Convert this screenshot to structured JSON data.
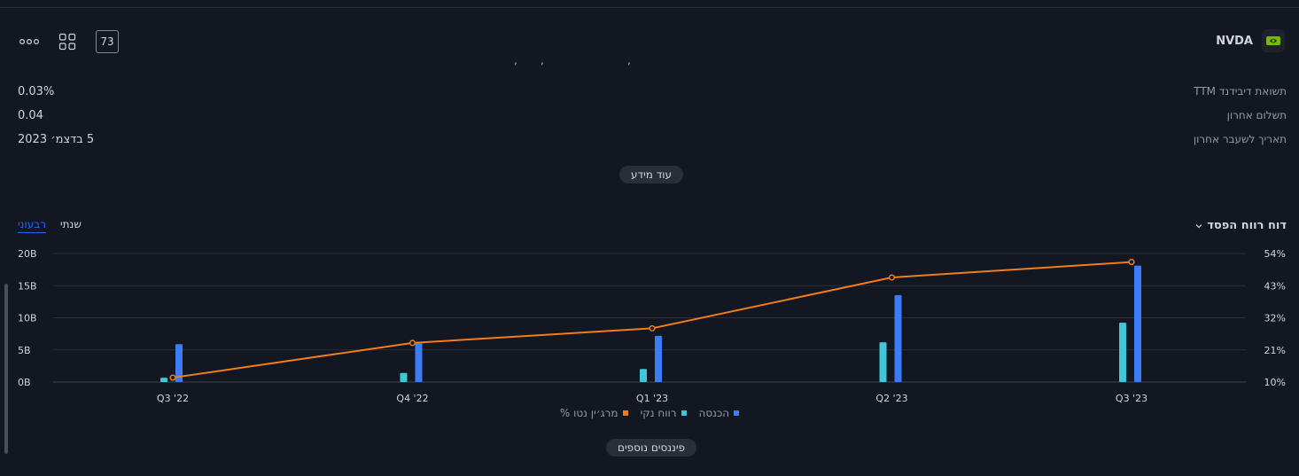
{
  "header": {
    "ticker": "NVDA",
    "badge_count": "73"
  },
  "dividend": {
    "rows": [
      {
        "label": "תשואת דיבידנד TTM",
        "value": "0.03%"
      },
      {
        "label": "תשלום אחרון",
        "value": "0.04"
      },
      {
        "label": "תאריך לשעבר אחרון",
        "value": "5 בדצמ׳ 2023"
      }
    ],
    "more_button": "עוד מידע"
  },
  "income": {
    "title": "דוח רווח הפסד",
    "tabs": {
      "annual": "שנתי",
      "quarterly": "רבעוני"
    },
    "more_button": "פיננסים נוספים"
  },
  "colors": {
    "revenue": "#3d7cf7",
    "net_income": "#3ec7d6",
    "margin": "#f07c1a"
  },
  "chart_data": {
    "type": "bar",
    "categories": [
      "Q3 '22",
      "Q4 '22",
      "Q1 '23",
      "Q2 '23",
      "Q3 '23"
    ],
    "series": [
      {
        "name": "הכנסה",
        "axis": "left",
        "values": [
          5.9,
          6.05,
          7.19,
          13.51,
          18.12
        ]
      },
      {
        "name": "רווח נקי",
        "axis": "left",
        "values": [
          0.68,
          1.41,
          2.04,
          6.19,
          9.24
        ]
      },
      {
        "name": "מרג׳ין נטו %",
        "type": "line",
        "axis": "right",
        "values": [
          11.5,
          23.4,
          28.4,
          45.8,
          51.1
        ]
      }
    ],
    "left_axis": {
      "ticks": [
        "0B",
        "5B",
        "10B",
        "15B",
        "20B"
      ],
      "ylim": [
        0,
        20
      ]
    },
    "right_axis": {
      "ticks": [
        "10%",
        "21%",
        "32%",
        "43%",
        "54%"
      ],
      "ylim": [
        10,
        54
      ]
    },
    "grid": true,
    "legend_position": "bottom"
  }
}
